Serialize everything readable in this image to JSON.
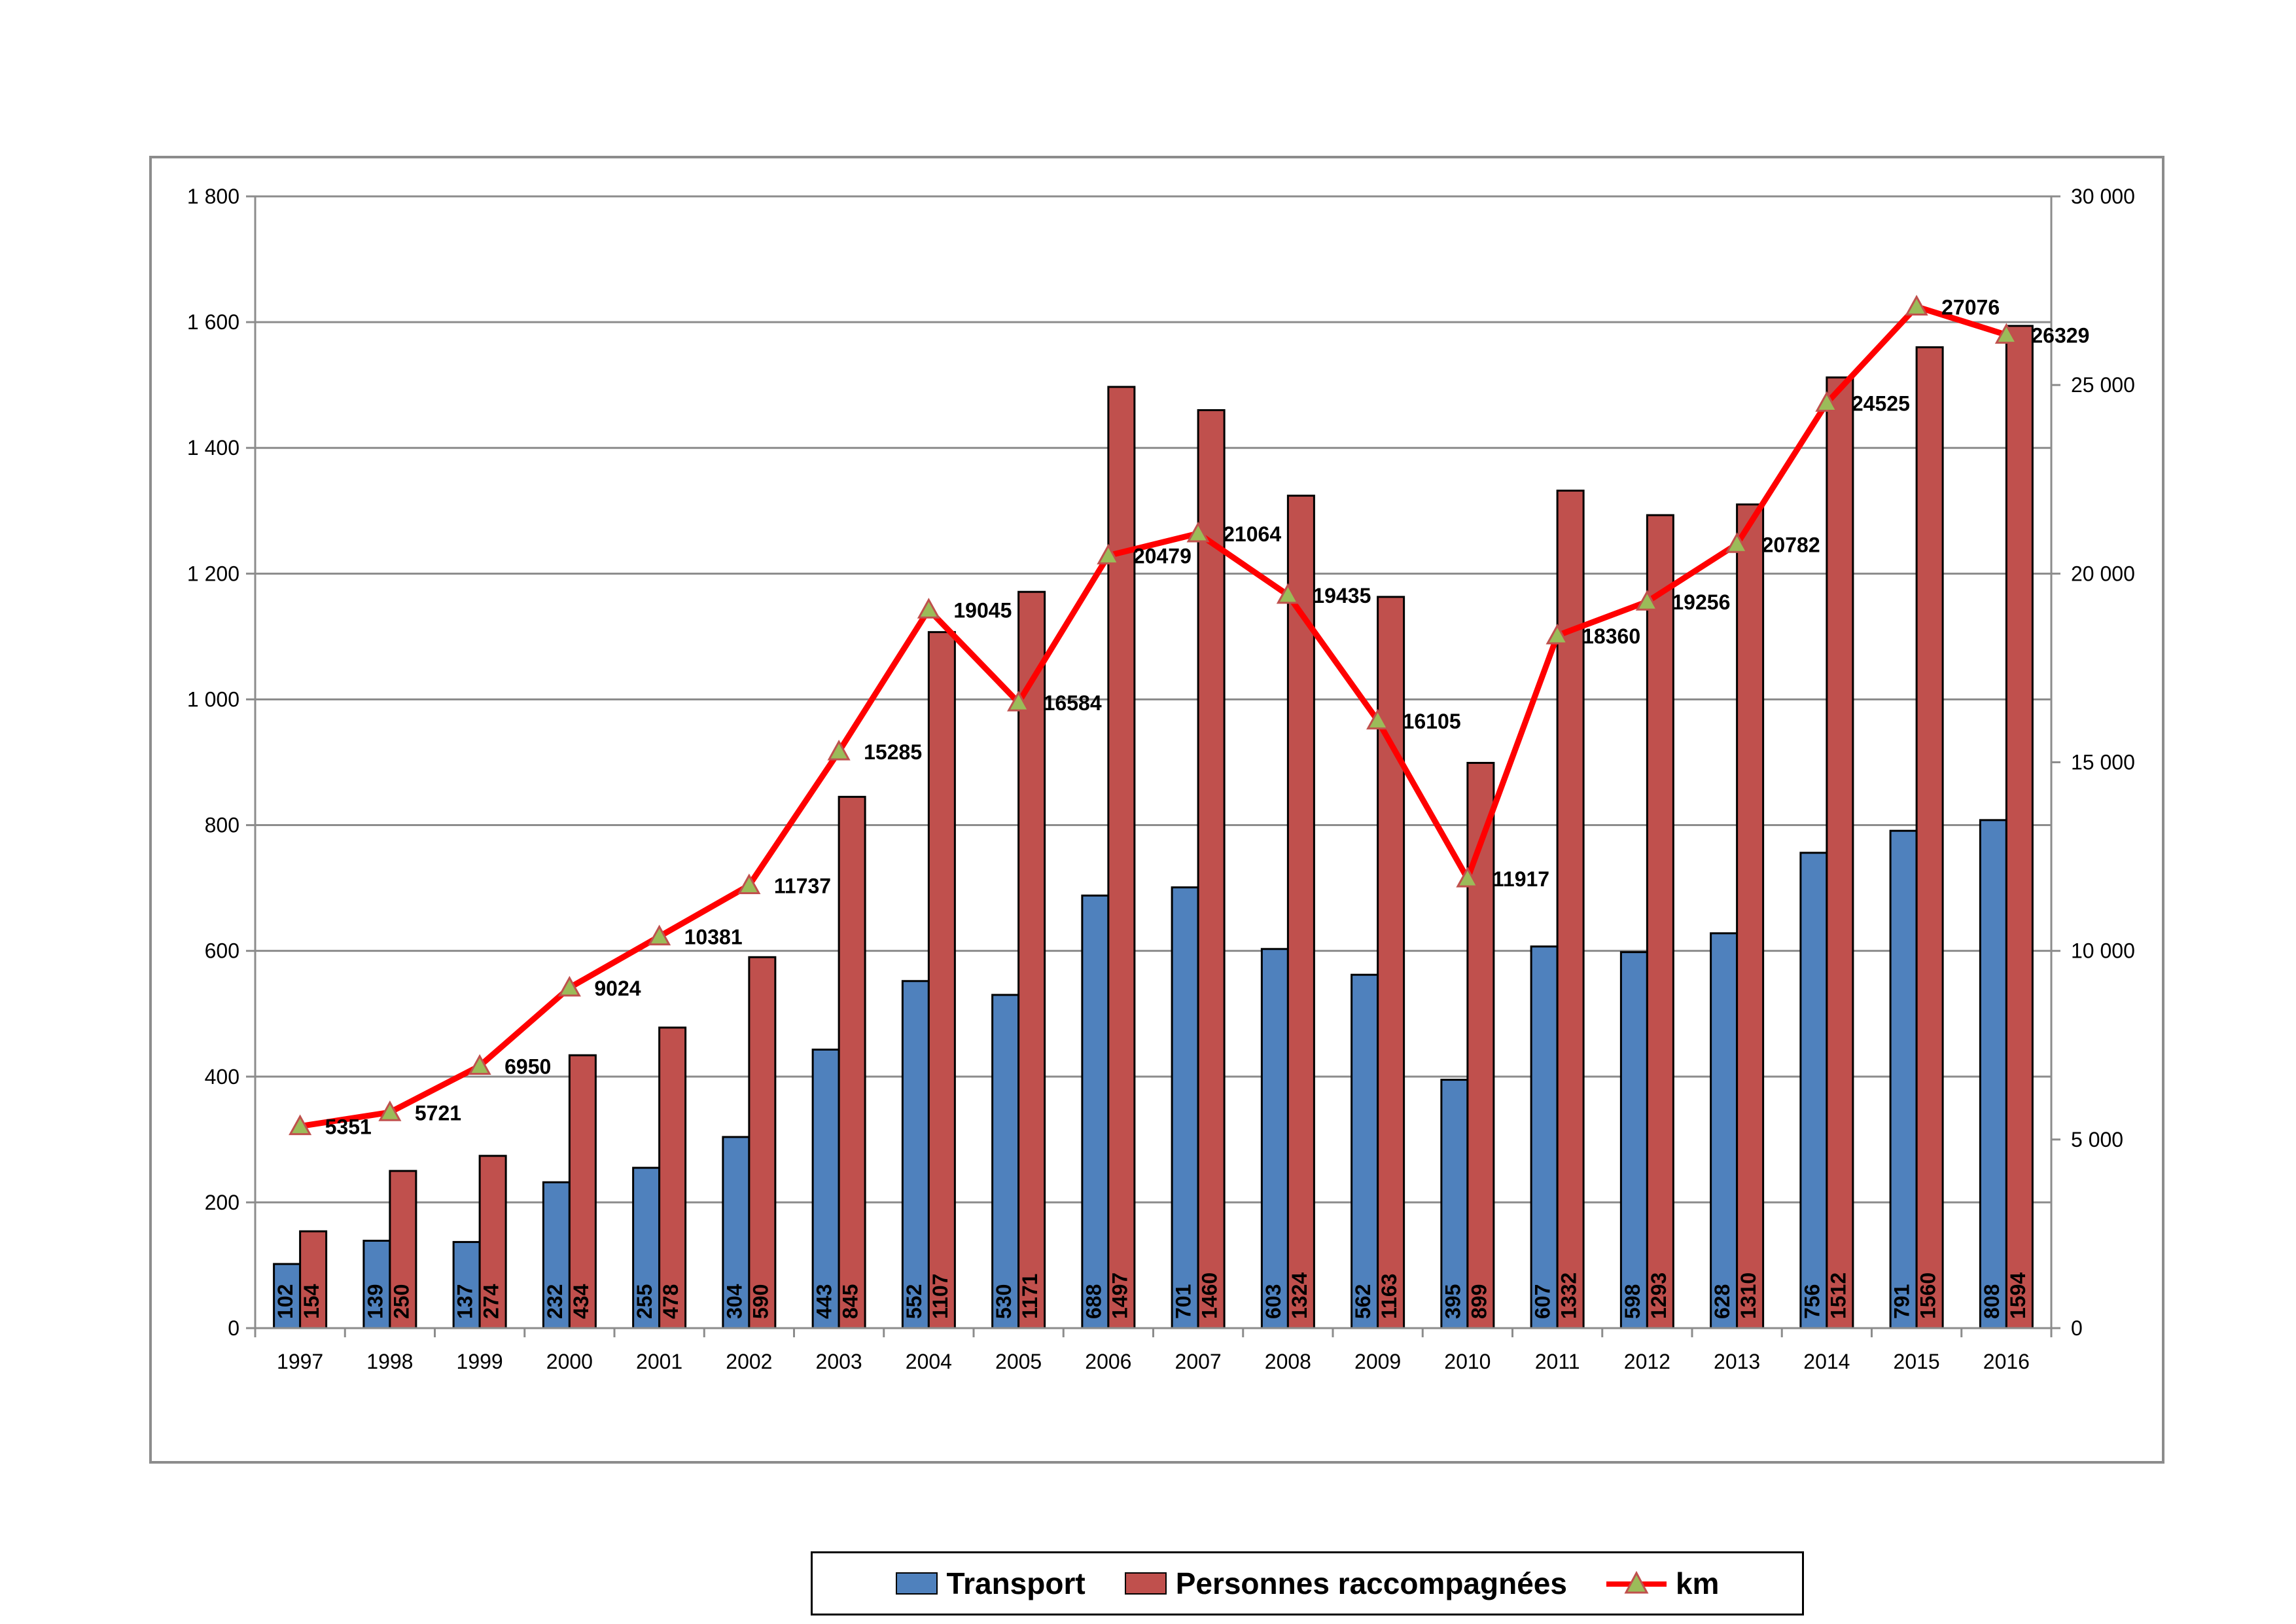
{
  "chart_data": {
    "type": "bar",
    "categories": [
      "1997",
      "1998",
      "1999",
      "2000",
      "2001",
      "2002",
      "2003",
      "2004",
      "2005",
      "2006",
      "2007",
      "2008",
      "2009",
      "2010",
      "2011",
      "2012",
      "2013",
      "2014",
      "2015",
      "2016"
    ],
    "series": [
      {
        "name": "Transport",
        "kind": "bar",
        "axis": "left",
        "color": "#4f81bd",
        "values": [
          102,
          139,
          137,
          232,
          255,
          304,
          443,
          552,
          530,
          688,
          701,
          603,
          562,
          395,
          607,
          598,
          628,
          756,
          791,
          808
        ],
        "labels": [
          "102",
          "139",
          "137",
          "232",
          "255",
          "304",
          "443",
          "552",
          "530",
          "688",
          "701",
          "603",
          "562",
          "395",
          "607",
          "598",
          "628",
          "756",
          "791",
          "808"
        ]
      },
      {
        "name": "Personnes raccompagnées",
        "kind": "bar",
        "axis": "left",
        "color": "#c0504d",
        "values": [
          154,
          250,
          274,
          434,
          478,
          590,
          845,
          1107,
          1171,
          1497,
          1460,
          1324,
          1163,
          899,
          1332,
          1293,
          1310,
          1512,
          1560,
          1594
        ],
        "labels": [
          "154",
          "250",
          "274",
          "434",
          "478",
          "590",
          "845",
          "1107",
          "1171",
          "1497",
          "1460",
          "1324",
          "1163",
          "899",
          "1332",
          "1293",
          "1310",
          "1512",
          "1560",
          "1594"
        ]
      },
      {
        "name": "km",
        "kind": "line",
        "axis": "right",
        "color": "#ff0000",
        "marker": "triangle",
        "marker_color": "#9bbb59",
        "values": [
          5351,
          5721,
          6950,
          9024,
          10381,
          11737,
          15285,
          19045,
          16584,
          20479,
          21064,
          19435,
          16105,
          11917,
          18360,
          19256,
          20782,
          24525,
          27076,
          26329
        ],
        "labels": [
          "5351",
          "5721",
          "6950",
          "9024",
          "10381",
          "11737",
          "15285",
          "19045",
          "16584",
          "20479",
          "21064",
          "19435",
          "16105",
          "11917",
          "18360",
          "19256",
          "20782",
          "24525",
          "27076",
          "26329"
        ]
      }
    ],
    "y_left": {
      "range": [
        0,
        1800
      ],
      "ticks": [
        0,
        200,
        400,
        600,
        800,
        1000,
        1200,
        1400,
        1600,
        1800
      ],
      "tick_labels": [
        "0",
        "200",
        "400",
        "600",
        "800",
        "1 000",
        "1 200",
        "1 400",
        "1 600",
        "1 800"
      ]
    },
    "y_right": {
      "range": [
        0,
        30000
      ],
      "ticks": [
        0,
        5000,
        10000,
        15000,
        20000,
        25000,
        30000
      ],
      "tick_labels": [
        "0",
        "5 000",
        "10 000",
        "15 000",
        "20 000",
        "25 000",
        "30 000"
      ]
    },
    "grid": true,
    "legend_position": "bottom"
  }
}
